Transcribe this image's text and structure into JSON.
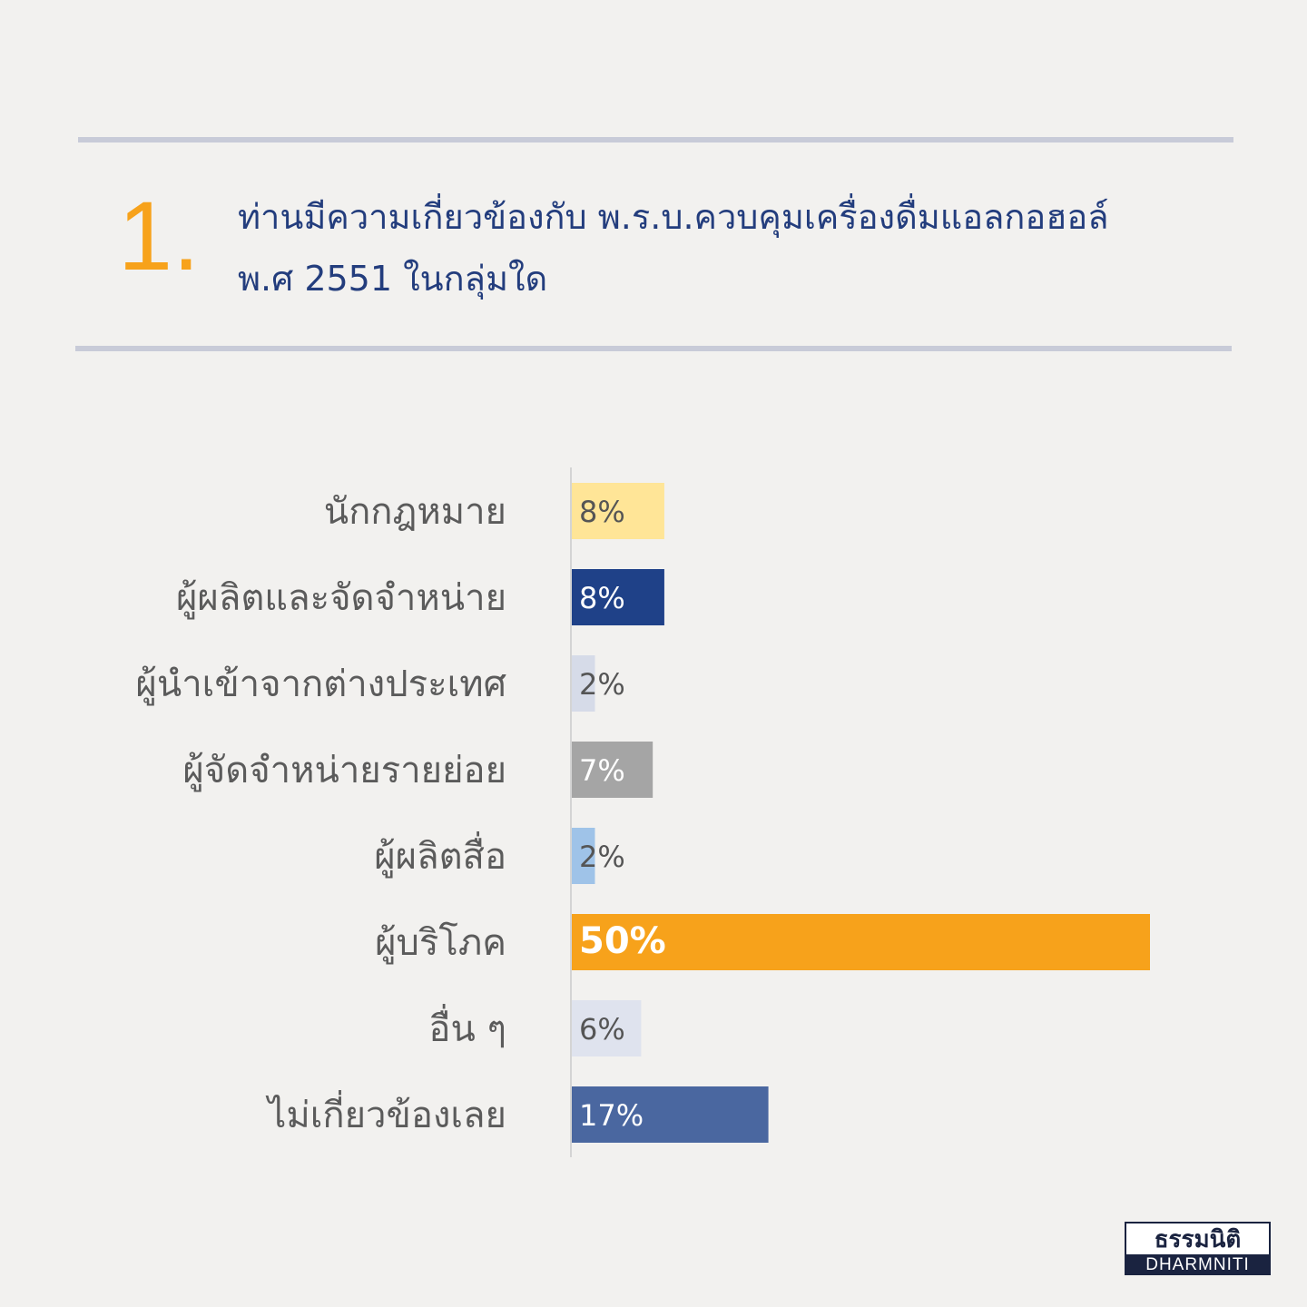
{
  "question": {
    "number": "1.",
    "line1": "ท่านมีความเกี่ยวข้องกับ พ.ร.บ.ควบคุมเครื่องดื่มแอลกอฮอล์",
    "line2": "พ.ศ 2551 ในกลุ่มใด"
  },
  "chart_data": {
    "type": "bar",
    "orientation": "horizontal",
    "categories": [
      "นักกฎหมาย",
      "ผู้ผลิตและจัดจำหน่าย",
      "ผู้นำเข้าจากต่างประเทศ",
      "ผู้จัดจำหน่ายรายย่อย",
      "ผู้ผลิตสื่อ",
      "ผู้บริโภค",
      "อื่น ๆ",
      "ไม่เกี่ยวข้องเลย"
    ],
    "values": [
      8,
      8,
      2,
      7,
      2,
      50,
      6,
      17
    ],
    "value_labels": [
      "8%",
      "8%",
      "2%",
      "7%",
      "2%",
      "50%",
      "6%",
      "17%"
    ],
    "colors": [
      "#ffe597",
      "#1f4188",
      "#d6dbe8",
      "#a5a5a5",
      "#9fc3e8",
      "#f7a21b",
      "#dfe3ee",
      "#4a67a0"
    ],
    "label_colors": [
      "#555555",
      "#ffffff",
      "#555555",
      "#ffffff",
      "#555555",
      "#ffffff",
      "#555555",
      "#ffffff"
    ],
    "xlim": [
      0,
      50
    ],
    "grid": false,
    "legend": "none"
  },
  "logo": {
    "thai": "ธรรมนิติ",
    "latin": "DHARMNITI"
  }
}
